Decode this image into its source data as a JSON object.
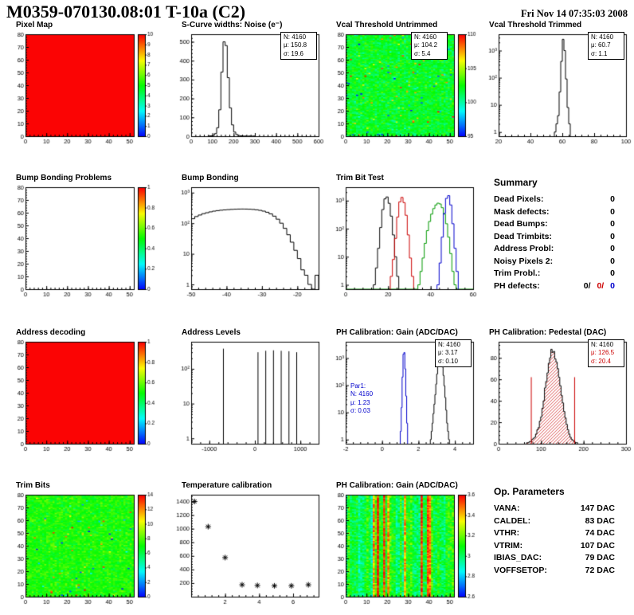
{
  "header": {
    "title": "M0359-070130.08:01 T-10a (C2)",
    "timestamp": "Fri Nov 14 07:35:03 2008"
  },
  "colors": {
    "stat_red": "#cc0000",
    "stat_blue": "#0000cc",
    "hist_green": "#009900",
    "map_red": "#ff0000"
  },
  "summary": {
    "title": "Summary",
    "rows": [
      {
        "label": "Dead Pixels:",
        "value": "0"
      },
      {
        "label": "Mask defects:",
        "value": "0"
      },
      {
        "label": "Dead Bumps:",
        "value": "0"
      },
      {
        "label": "Dead Trimbits:",
        "value": "0"
      },
      {
        "label": "Address Probl:",
        "value": "0"
      },
      {
        "label": "Noisy Pixels 2:",
        "value": "0"
      },
      {
        "label": "Trim Probl.:",
        "value": "0"
      }
    ],
    "ph_defects": {
      "label": "PH defects:",
      "black": "0/",
      "red": "0/",
      "blue": "0"
    }
  },
  "op_parameters": {
    "title": "Op. Parameters",
    "rows": [
      {
        "label": "VANA:",
        "value": "147 DAC"
      },
      {
        "label": "CALDEL:",
        "value": "83 DAC"
      },
      {
        "label": "VTHR:",
        "value": "74 DAC"
      },
      {
        "label": "VTRIM:",
        "value": "107 DAC"
      },
      {
        "label": "IBIAS_DAC:",
        "value": "79 DAC"
      },
      {
        "label": "VOFFSETOP:",
        "value": "72 DAC"
      }
    ]
  },
  "chart_data": [
    {
      "name": "pixel-map",
      "type": "heatmap",
      "title": "Pixel Map",
      "pattern": "solid",
      "seed": 11,
      "xlim": [
        0,
        52
      ],
      "ylim": [
        0,
        80
      ],
      "xticks": [
        0,
        10,
        20,
        30,
        40,
        50
      ],
      "yticks": [
        0,
        10,
        20,
        30,
        40,
        50,
        60,
        70,
        80
      ],
      "zlim": [
        0,
        10
      ],
      "colorbar": {
        "labels": [
          "0",
          "1",
          "2",
          "3",
          "4",
          "5",
          "6",
          "7",
          "8",
          "9",
          "10"
        ]
      }
    },
    {
      "name": "scurve-noise",
      "type": "histogram",
      "title": "S-Curve widths: Noise (e⁻)",
      "xlim": [
        0,
        600
      ],
      "xticks": [
        0,
        100,
        200,
        300,
        400,
        500,
        600
      ],
      "ylim": [
        0,
        540
      ],
      "yticks": [
        0,
        100,
        200,
        300,
        400,
        500
      ],
      "yscale": "linear",
      "series": [
        {
          "color": "#000000",
          "x0": 80,
          "binWidth": 10,
          "counts": [
            1,
            2,
            5,
            14,
            45,
            140,
            340,
            500,
            480,
            310,
            150,
            60,
            22,
            9,
            4,
            2,
            1,
            1,
            0,
            1,
            0,
            1
          ]
        }
      ],
      "stats": [
        "N: 4160",
        "μ: 150.8",
        "σ: 19.6"
      ]
    },
    {
      "name": "vcal-threshold-untrimmed",
      "type": "heatmap",
      "title": "Vcal Threshold Untrimmed",
      "pattern": "noise",
      "seed": 23,
      "noise": {
        "base": 0.47,
        "spread": 0.16,
        "speckle": 0.035
      },
      "xlim": [
        0,
        52
      ],
      "ylim": [
        0,
        80
      ],
      "xticks": [
        0,
        10,
        20,
        30,
        40,
        50
      ],
      "yticks": [
        0,
        10,
        20,
        30,
        40,
        50,
        60,
        70,
        80
      ],
      "colorbar": {
        "labels": [
          "95",
          "100",
          "105",
          "110"
        ]
      },
      "stats": [
        "N: 4160",
        "μ: 104.2",
        "σ: 5.4"
      ]
    },
    {
      "name": "vcal-threshold-trimmed",
      "type": "histogram",
      "title": "Vcal Threshold Trimmed",
      "xlim": [
        20,
        100
      ],
      "xticks": [
        20,
        40,
        60,
        80,
        100
      ],
      "yscale": "log",
      "ylim": [
        0.7,
        4000
      ],
      "series": [
        {
          "color": "#000000",
          "x0": 55,
          "binWidth": 1,
          "counts": [
            1,
            2,
            4,
            30,
            400,
            2600,
            1000,
            90,
            8,
            2
          ]
        }
      ],
      "stats": [
        "N: 4160",
        "μ: 60.7",
        "σ: 1.1"
      ]
    },
    {
      "name": "bump-bonding-problems",
      "type": "heatmap",
      "title": "Bump Bonding Problems",
      "pattern": "empty",
      "seed": 5,
      "xlim": [
        0,
        52
      ],
      "ylim": [
        0,
        80
      ],
      "xticks": [
        0,
        10,
        20,
        30,
        40,
        50
      ],
      "yticks": [
        0,
        10,
        20,
        30,
        40,
        50,
        60,
        70,
        80
      ],
      "colorbar": {
        "labels": [
          "0",
          "0.2",
          "0.4",
          "0.6",
          "0.8",
          "1"
        ]
      }
    },
    {
      "name": "bump-bonding",
      "type": "histogram",
      "title": "Bump Bonding",
      "xlim": [
        -50,
        -14
      ],
      "xticks": [
        -50,
        -40,
        -30,
        -20
      ],
      "yscale": "log",
      "ylim": [
        0.7,
        1500
      ],
      "series": [
        {
          "color": "#000000",
          "x0": -50,
          "binWidth": 1,
          "counts": [
            140,
            165,
            185,
            205,
            220,
            235,
            248,
            258,
            266,
            272,
            278,
            283,
            287,
            290,
            291,
            290,
            287,
            282,
            274,
            263,
            248,
            228,
            202,
            170,
            135,
            100,
            68,
            42,
            24,
            13,
            7,
            3,
            2,
            1,
            0,
            2
          ]
        }
      ]
    },
    {
      "name": "trim-bit-test",
      "type": "histogram",
      "title": "Trim Bit Test",
      "xlim": [
        0,
        60
      ],
      "xticks": [
        0,
        20,
        40,
        60
      ],
      "yscale": "log",
      "ylim": [
        0.7,
        3000
      ],
      "series": [
        {
          "color": "#009900",
          "x0": 34,
          "binWidth": 1,
          "baseline": true,
          "counts": [
            1,
            3,
            9,
            30,
            85,
            180,
            330,
            520,
            700,
            810,
            760,
            560,
            330,
            150,
            50,
            13,
            3,
            1
          ]
        },
        {
          "color": "#000000",
          "x0": 13,
          "binWidth": 1,
          "counts": [
            1,
            4,
            20,
            110,
            480,
            1150,
            1350,
            800,
            280,
            60,
            10,
            2
          ]
        },
        {
          "color": "#cc0000",
          "x0": 21,
          "binWidth": 1,
          "counts": [
            2,
            8,
            45,
            260,
            900,
            1300,
            850,
            300,
            60,
            9,
            2
          ]
        },
        {
          "color": "#0000cc",
          "x0": 43,
          "binWidth": 1,
          "counts": [
            1,
            6,
            50,
            350,
            1200,
            1500,
            700,
            150,
            20,
            3
          ]
        }
      ]
    },
    {
      "name": "address-decoding",
      "type": "heatmap",
      "title": "Address decoding",
      "pattern": "solid",
      "seed": 7,
      "xlim": [
        0,
        52
      ],
      "ylim": [
        0,
        80
      ],
      "xticks": [
        0,
        10,
        20,
        30,
        40,
        50
      ],
      "yticks": [
        0,
        10,
        20,
        30,
        40,
        50,
        60,
        70,
        80
      ],
      "colorbar": {
        "labels": [
          "0",
          "0.2",
          "0.4",
          "0.6",
          "0.8",
          "1"
        ]
      }
    },
    {
      "name": "address-levels",
      "type": "histogram",
      "title": "Address Levels",
      "xlim": [
        -1400,
        1400
      ],
      "xticks": [
        -1000,
        0,
        1000
      ],
      "yscale": "log",
      "ylim": [
        0.7,
        600
      ],
      "series": [
        {
          "color": "#000000",
          "spikes": [
            [
              -700,
              380
            ],
            [
              60,
              300
            ],
            [
              230,
              330
            ],
            [
              400,
              340
            ],
            [
              570,
              330
            ],
            [
              740,
              320
            ],
            [
              910,
              300
            ]
          ]
        }
      ]
    },
    {
      "name": "ph-calibration-gain-hist",
      "type": "histogram",
      "title": "PH Calibration: Gain (ADC/DAC)",
      "xlim": [
        -2,
        5
      ],
      "xticks": [
        -2,
        0,
        2,
        4
      ],
      "yscale": "log",
      "ylim": [
        0.7,
        4000
      ],
      "series": [
        {
          "color": "#0000cc",
          "x0": 1.0,
          "binWidth": 0.05,
          "counts": [
            2,
            15,
            200,
            1400,
            1600,
            400,
            40,
            4
          ]
        },
        {
          "color": "#000000",
          "x0": 2.65,
          "binWidth": 0.05,
          "counts": [
            1,
            2,
            4,
            9,
            20,
            45,
            110,
            260,
            520,
            830,
            1020,
            980,
            760,
            470,
            230,
            95,
            35,
            12,
            4,
            2,
            1
          ]
        }
      ],
      "stats": [
        "N: 4160",
        "μ: 3.17",
        "σ: 0.10"
      ],
      "stats2": [
        "Par1:",
        "N: 4160",
        "μ: 1.23",
        "σ: 0.03"
      ]
    },
    {
      "name": "ph-calibration-pedestal",
      "type": "histogram",
      "title": "PH Calibration: Pedestal (DAC)",
      "xlim": [
        0,
        300
      ],
      "xticks": [
        0,
        100,
        200,
        300
      ],
      "ylim": [
        0,
        95
      ],
      "yticks": [
        0,
        20,
        40,
        60,
        80
      ],
      "yscale": "linear",
      "series": [
        {
          "color": "#000000",
          "fill": "hatch-red",
          "x0": 66,
          "binWidth": 3,
          "counts": [
            1,
            1,
            2,
            2,
            4,
            5,
            6,
            9,
            13,
            15,
            21,
            25,
            33,
            40,
            52,
            58,
            66,
            75,
            80,
            88,
            85,
            86,
            79,
            76,
            70,
            62,
            54,
            45,
            38,
            30,
            24,
            18,
            13,
            9,
            6,
            4,
            3,
            2,
            1,
            1
          ]
        }
      ],
      "vlines": [
        {
          "x": 76,
          "h": 62,
          "color": "#cc0000"
        },
        {
          "x": 178,
          "h": 62,
          "color": "#cc0000"
        }
      ],
      "stats": [
        "N: 4160",
        "μ: 126.5",
        "σ: 20.4"
      ]
    },
    {
      "name": "trim-bits-map",
      "type": "heatmap",
      "title": "Trim Bits",
      "pattern": "noise",
      "seed": 41,
      "noise": {
        "base": 0.52,
        "spread": 0.13,
        "speckle": 0.02
      },
      "xlim": [
        0,
        52
      ],
      "ylim": [
        0,
        80
      ],
      "xticks": [
        0,
        10,
        20,
        30,
        40,
        50
      ],
      "yticks": [
        0,
        10,
        20,
        30,
        40,
        50,
        60,
        70,
        80
      ],
      "colorbar": {
        "labels": [
          "0",
          "2",
          "4",
          "6",
          "8",
          "10",
          "12",
          "14"
        ]
      }
    },
    {
      "name": "temperature-calibration",
      "type": "scatter",
      "title": "Temperature calibration",
      "xlim": [
        0,
        7.5
      ],
      "xticks": [
        2,
        4,
        6
      ],
      "ylim": [
        0,
        1500
      ],
      "yticks": [
        200,
        400,
        600,
        800,
        1000,
        1200,
        1400
      ],
      "marker": "asterisk",
      "points": [
        [
          0.2,
          1400
        ],
        [
          1,
          1030
        ],
        [
          2,
          575
        ],
        [
          3,
          175
        ],
        [
          3.9,
          165
        ],
        [
          4.9,
          160
        ],
        [
          5.9,
          160
        ],
        [
          6.9,
          175
        ]
      ]
    },
    {
      "name": "ph-calibration-gain-map",
      "type": "heatmap",
      "title": "PH Calibration: Gain (ADC/DAC)",
      "pattern": "stripes",
      "seed": 57,
      "noise": {
        "base": 0.45,
        "colSpread": 0.35,
        "cellSpread": 0.22,
        "hotCol": 0.08
      },
      "xlim": [
        0,
        52
      ],
      "ylim": [
        0,
        80
      ],
      "xticks": [
        0,
        10,
        20,
        30,
        40,
        50
      ],
      "yticks": [
        0,
        10,
        20,
        30,
        40,
        50,
        60,
        70,
        80
      ],
      "colorbar": {
        "labels": [
          "2.6",
          "2.8",
          "3",
          "3.2",
          "3.4",
          "3.6"
        ]
      }
    }
  ]
}
